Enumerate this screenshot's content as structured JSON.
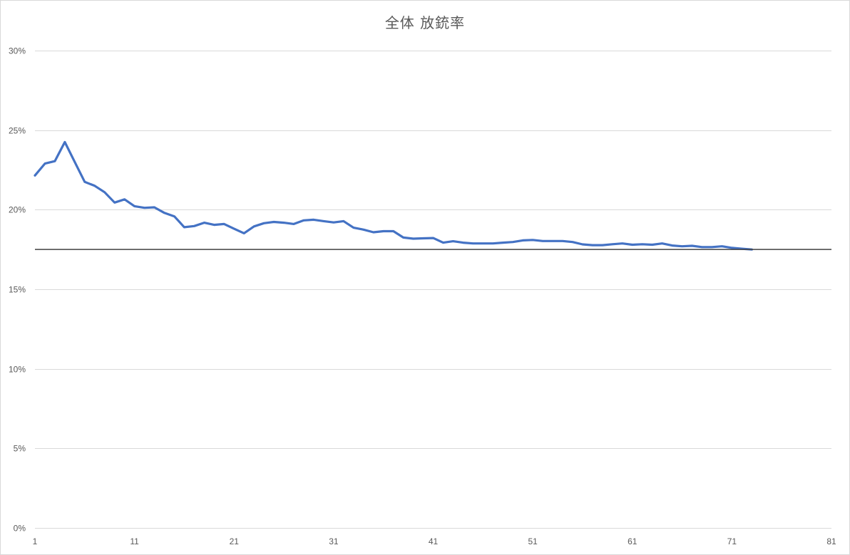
{
  "chart_data": {
    "type": "line",
    "title": "全体 放銃率",
    "xlabel": "",
    "ylabel": "",
    "xlim": [
      1,
      81
    ],
    "ylim": [
      0,
      0.3
    ],
    "x_ticks": [
      1,
      11,
      21,
      31,
      41,
      51,
      61,
      71,
      81
    ],
    "y_ticks": [
      0,
      0.05,
      0.1,
      0.15,
      0.2,
      0.25,
      0.3
    ],
    "y_tick_labels": [
      "0%",
      "5%",
      "10%",
      "15%",
      "20%",
      "25%",
      "30%"
    ],
    "grid": true,
    "legend": "none",
    "series": [
      {
        "color": "#4472c4",
        "x": [
          1,
          2,
          3,
          4,
          5,
          6,
          7,
          8,
          9,
          10,
          11,
          12,
          13,
          14,
          15,
          16,
          17,
          18,
          19,
          20,
          21,
          22,
          23,
          24,
          25,
          26,
          27,
          28,
          29,
          30,
          31,
          32,
          33,
          34,
          35,
          36,
          37,
          38,
          39,
          40,
          41,
          42,
          43,
          44,
          45,
          46,
          47,
          48,
          49,
          50,
          51,
          52,
          53,
          54,
          55,
          56,
          57,
          58,
          59,
          60,
          61,
          62,
          63,
          64,
          65,
          66,
          67,
          68,
          69,
          70,
          71,
          72,
          73
        ],
        "values": [
          0.2215,
          0.229,
          0.2305,
          0.2425,
          0.23,
          0.2175,
          0.215,
          0.211,
          0.2045,
          0.2065,
          0.2022,
          0.2012,
          0.2015,
          0.198,
          0.1958,
          0.189,
          0.1897,
          0.1918,
          0.1905,
          0.191,
          0.188,
          0.1852,
          0.1895,
          0.1915,
          0.1923,
          0.1918,
          0.191,
          0.1933,
          0.1937,
          0.1928,
          0.192,
          0.1928,
          0.1887,
          0.1875,
          0.1858,
          0.1865,
          0.1865,
          0.1825,
          0.1818,
          0.182,
          0.1822,
          0.1793,
          0.1802,
          0.1793,
          0.1788,
          0.1788,
          0.1788,
          0.1793,
          0.1797,
          0.1807,
          0.181,
          0.1803,
          0.1803,
          0.1803,
          0.1797,
          0.1782,
          0.1777,
          0.1777,
          0.1783,
          0.1788,
          0.178,
          0.1783,
          0.178,
          0.1788,
          0.1775,
          0.177,
          0.1773,
          0.1765,
          0.1765,
          0.177,
          0.176,
          0.1755,
          0.175
        ]
      }
    ],
    "reference_line": {
      "value": 0.175,
      "color": "#404040"
    }
  }
}
